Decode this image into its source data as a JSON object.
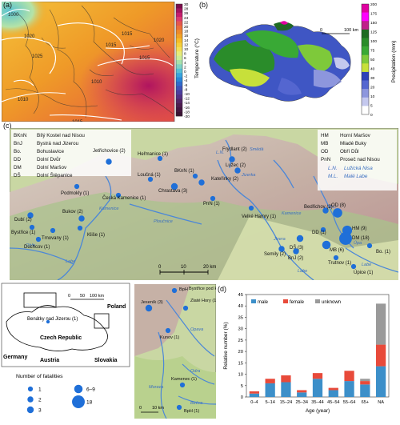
{
  "panel_a": {
    "label": "(a)",
    "isobars": [
      "1000",
      "1015",
      "1020",
      "1025",
      "1015",
      "1010",
      "1015",
      "1015",
      "1010",
      "1020"
    ],
    "colorbar_title": "Temperature (°C)",
    "colorbar_ticks": [
      "30",
      "28",
      "26",
      "24",
      "22",
      "20",
      "18",
      "16",
      "14",
      "12",
      "10",
      "8",
      "6",
      "4",
      "2",
      "0",
      "-2",
      "-4",
      "-6",
      "-8",
      "-10",
      "-12",
      "-14",
      "-16",
      "-18",
      "-20"
    ],
    "colorbar_colors": [
      "#7a0d4b",
      "#a3135e",
      "#c51d6e",
      "#dc3a6e",
      "#e5574e",
      "#ea6f3b",
      "#ee8a2b",
      "#f2a324",
      "#f5bb27",
      "#f6cf3a",
      "#f3df58",
      "#e7eb7a",
      "#cdec95",
      "#a8e2ad",
      "#7fd3c4",
      "#56c0d6",
      "#36a5df",
      "#2888d9",
      "#2f6bcc",
      "#3e52b8",
      "#4b3e9f",
      "#523184",
      "#532667",
      "#4e1d4f",
      "#441640",
      "#3a1233"
    ]
  },
  "panel_b": {
    "label": "(b)",
    "scale_start": "0",
    "scale_end": "100 km",
    "colorbar_title": "Precipitation (mm)",
    "colorbar_ticks": [
      "200",
      "175",
      "150",
      "125",
      "100",
      "75",
      "50",
      "40",
      "30",
      "20",
      "10",
      "5",
      "0"
    ],
    "colorbar_colors": [
      "#e000a0",
      "#ff00ff",
      "#c0208a",
      "#1e6b22",
      "#2a8c2a",
      "#39a935",
      "#7ec93a",
      "#c7e03a",
      "#2d40b8",
      "#5466d0",
      "#8d96dd",
      "#c4c8ee",
      "#ffffff"
    ]
  },
  "panel_c": {
    "label": "(c)",
    "legend_left": [
      {
        "abbr": "BKnN",
        "name": "Bílý Kostel nad Nisou"
      },
      {
        "abbr": "BnJ",
        "name": "Bystrá nad Jizerou"
      },
      {
        "abbr": "Bo.",
        "name": "Bohuslavice"
      },
      {
        "abbr": "DD",
        "name": "Dolní Dvůr"
      },
      {
        "abbr": "DM",
        "name": "Dolní Maršov"
      },
      {
        "abbr": "DŠ",
        "name": "Dolní Štěpanice"
      }
    ],
    "legend_right": [
      {
        "abbr": "HM",
        "name": "Horní Maršov"
      },
      {
        "abbr": "MB",
        "name": "Mladé Buky"
      },
      {
        "abbr": "OD",
        "name": "Obří Důl"
      },
      {
        "abbr": "PnN",
        "name": "Proseč nad Nisou"
      }
    ],
    "rivers_legend": [
      {
        "abbr": "L.N.",
        "name": "Lužická Nisa"
      },
      {
        "abbr": "M.L.",
        "name": "Malé Labe"
      }
    ],
    "places": [
      {
        "name": "Heřmanice (1)",
        "r": 1
      },
      {
        "name": "Frýdlant (2)",
        "r": 2
      },
      {
        "name": "Lužec (2)",
        "r": 2
      },
      {
        "name": "Jetřichovice (2)",
        "r": 2
      },
      {
        "name": "Loučná (1)",
        "r": 1
      },
      {
        "name": "BKnN (1)",
        "r": 1
      },
      {
        "name": "Chrastava (3)",
        "r": 3
      },
      {
        "name": "Kateřinky (2)",
        "r": 2
      },
      {
        "name": "Podmokly (1)",
        "r": 1
      },
      {
        "name": "Česká Kamenice (1)",
        "r": 1
      },
      {
        "name": "PnN (1)",
        "r": 1
      },
      {
        "name": "Velké Hamry (1)",
        "r": 1
      },
      {
        "name": "Bedřichov (2)",
        "r": 2
      },
      {
        "name": "OD (8)",
        "r": 8
      },
      {
        "name": "Dubí (2)",
        "r": 2
      },
      {
        "name": "Bukov (2)",
        "r": 2
      },
      {
        "name": "Bystřice (1)",
        "r": 1
      },
      {
        "name": "Trnovany (1)",
        "r": 1
      },
      {
        "name": "Kliše (1)",
        "r": 1
      },
      {
        "name": "Duchcov (1)",
        "r": 1
      },
      {
        "name": "DD (1)",
        "r": 1
      },
      {
        "name": "HM (9)",
        "r": 9
      },
      {
        "name": "DM (18)",
        "r": 18
      },
      {
        "name": "MB (6)",
        "r": 6
      },
      {
        "name": "DŠ (3)",
        "r": 3
      },
      {
        "name": "Semily (2)",
        "r": 2
      },
      {
        "name": "BnJ (2)",
        "r": 2
      },
      {
        "name": "Bo. (1)",
        "r": 1
      },
      {
        "name": "Trutnov (1)",
        "r": 1
      },
      {
        "name": "Úpice (1)",
        "r": 1
      }
    ],
    "rivers": [
      "Kamenice",
      "Labe",
      "Ohře",
      "Jizera",
      "Jizerka",
      "Kamenice",
      "Úpa",
      "Labe",
      "Labe",
      "L.N.",
      "M.L.",
      "Ploučnice",
      "Smědá"
    ],
    "scale_ticks": [
      "0",
      "10",
      "20 km"
    ]
  },
  "inset_map": {
    "places": [
      "Poland",
      "Germany",
      "Czech Republic",
      "Austria",
      "Slovakia",
      "Benátky nad Jizerou (1)"
    ],
    "scale": [
      "0",
      "50",
      "100 km"
    ]
  },
  "fatality_legend": {
    "title": "Number of fatalities",
    "items": [
      {
        "label": "1",
        "r": 1
      },
      {
        "label": "2",
        "r": 2
      },
      {
        "label": "3",
        "r": 3
      },
      {
        "label": "6–9",
        "r": 6
      },
      {
        "label": "18",
        "r": 18
      }
    ]
  },
  "jesenik": {
    "places": [
      {
        "name": "BpH",
        "r": 1
      },
      {
        "name": "Bystřice pod Hostýnem",
        "r": 1
      },
      {
        "name": "Jeseník (3)",
        "r": 3
      },
      {
        "name": "Zlaté Hory (1)",
        "r": 1
      },
      {
        "name": "Kunov (1)",
        "r": 1
      },
      {
        "name": "Kamenec (1)",
        "r": 1
      },
      {
        "name": "BpH (1)",
        "r": 1
      }
    ],
    "rivers": [
      "Opava",
      "Odra",
      "Morava",
      "Bečva"
    ],
    "scale": [
      "0",
      "10 km"
    ]
  },
  "panel_d": {
    "label": "(d)",
    "colors": {
      "male": "#3c8fc9",
      "female": "#e84a3a",
      "unknown": "#9a9a9a"
    }
  },
  "chart_data": {
    "type": "bar",
    "stacked": true,
    "categories": [
      "0–4",
      "5–14",
      "15–24",
      "25–34",
      "35–44",
      "45–54",
      "55–64",
      "65+",
      "NA"
    ],
    "series": [
      {
        "name": "male",
        "values": [
          1.5,
          6,
          6.5,
          2,
          8,
          3,
          7,
          5.5,
          13.5
        ]
      },
      {
        "name": "female",
        "values": [
          1,
          2,
          3,
          1,
          2.5,
          1,
          4.5,
          1.5,
          9.5
        ]
      },
      {
        "name": "unknown",
        "values": [
          0,
          0,
          0,
          0,
          0,
          0,
          0,
          1,
          18
        ]
      }
    ],
    "xlabel": "Age (year)",
    "ylabel": "Relative number (%)",
    "ylim": [
      0,
      45
    ],
    "yticks": [
      "0",
      "5",
      "10",
      "15",
      "20",
      "25",
      "30",
      "35",
      "40",
      "45"
    ],
    "legend_position": "top-left"
  }
}
